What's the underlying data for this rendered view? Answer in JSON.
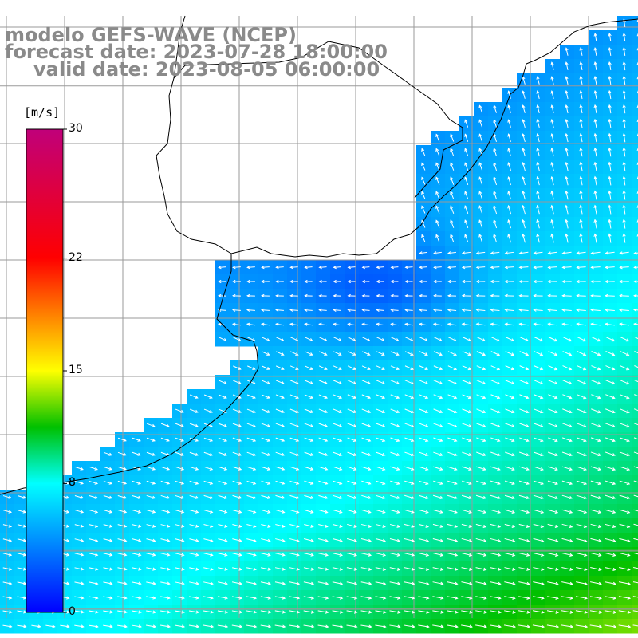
{
  "title": {
    "line1": "modelo GEFS-WAVE (NCEP)",
    "line2": "forecast date: 2023-07-28 18:00:00",
    "line3": "valid date: 2023-08-05 06:00:00"
  },
  "colorbar": {
    "units": "[m/s]",
    "ticks": [
      {
        "label": "30",
        "value": 30
      },
      {
        "label": "22",
        "value": 22
      },
      {
        "label": "15",
        "value": 15
      },
      {
        "label": "8",
        "value": 8
      },
      {
        "label": "0",
        "value": 0
      }
    ],
    "range": [
      0,
      30
    ],
    "stops": [
      {
        "value": 0,
        "color": "#0000ff"
      },
      {
        "value": 8,
        "color": "#00ffff"
      },
      {
        "value": 11.5,
        "color": "#00c000"
      },
      {
        "value": 15,
        "color": "#ffff00"
      },
      {
        "value": 18.5,
        "color": "#ff8000"
      },
      {
        "value": 22,
        "color": "#ff0000"
      },
      {
        "value": 30,
        "color": "#c0007a"
      }
    ]
  },
  "colors": {
    "ocean_dark": "#0a2af0",
    "ocean_mid": "#1a8ef0",
    "ocean_light": "#10d8f0",
    "ocean_green": "#20f060",
    "land": "#ffffff",
    "grid": "#9a9a9a",
    "arrow": "#ffffff",
    "coast": "#000000",
    "title": "#8a8a8a"
  },
  "grid": {
    "spacing_deg": 2
  }
}
